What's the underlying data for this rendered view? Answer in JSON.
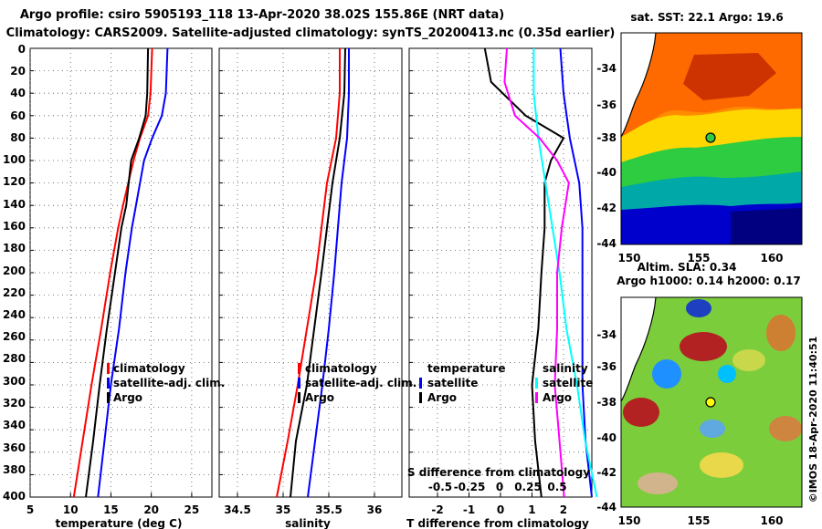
{
  "header": {
    "line1": "Argo profile: csiro 5905193_118 13-Apr-2020 38.02S 155.86E (NRT data)",
    "line2": "Climatology: CARS2009. Satellite-adjusted climatology: synTS_20200413.nc (0.35d earlier)"
  },
  "side_note": "©IMOS 18-Apr-2020 11:40:51",
  "colors": {
    "climatology": "#ff0000",
    "satellite": "#0000ff",
    "argo": "#000000",
    "t_diff": "#ff00ff",
    "s_diff": "#00ffff"
  },
  "depth_axis": {
    "label_ticks": [
      "0",
      "20",
      "40",
      "60",
      "80",
      "100",
      "120",
      "140",
      "160",
      "180",
      "200",
      "220",
      "240",
      "260",
      "280",
      "300",
      "320",
      "340",
      "360",
      "380",
      "400"
    ],
    "ylim": [
      0,
      400
    ]
  },
  "maps": [
    {
      "title": "sat. SST: 22.1 Argo: 19.6",
      "lat_ticks": [
        "-34",
        "-36",
        "-38",
        "-40",
        "-42",
        "-44"
      ],
      "lon_ticks": [
        "150",
        "155",
        "160"
      ]
    },
    {
      "title1": "Altim. SLA: 0.34",
      "title2": "Argo h1000: 0.14 h2000: 0.17",
      "lat_ticks": [
        "-34",
        "-36",
        "-38",
        "-40",
        "-42",
        "-44"
      ],
      "lon_ticks": [
        "150",
        "155",
        "160"
      ]
    }
  ],
  "chart_data": [
    {
      "type": "line",
      "id": "temperature",
      "xlabel": "temperature (deg C)",
      "ylabel": "depth",
      "xlim": [
        5,
        27.5
      ],
      "ylim": [
        400,
        0
      ],
      "x_ticks": [
        "5",
        "10",
        "15",
        "20",
        "25"
      ],
      "legend": [
        "climatology",
        "satellite-adj. clim.",
        "Argo"
      ],
      "series": [
        {
          "name": "climatology",
          "color": "#ff0000",
          "depth": [
            0,
            40,
            60,
            80,
            100,
            140,
            160,
            200,
            250,
            300,
            350,
            400
          ],
          "values": [
            20.1,
            19.9,
            19.6,
            18.6,
            17.8,
            16.5,
            15.9,
            14.9,
            13.8,
            12.6,
            11.5,
            10.4
          ]
        },
        {
          "name": "satellite-adj. clim.",
          "color": "#0000ff",
          "depth": [
            0,
            40,
            60,
            80,
            100,
            140,
            160,
            200,
            250,
            300,
            350,
            400
          ],
          "values": [
            22.0,
            21.8,
            21.3,
            20.1,
            19.1,
            18.1,
            17.6,
            16.8,
            16.0,
            15.0,
            14.2,
            13.4
          ]
        },
        {
          "name": "Argo",
          "color": "#000000",
          "depth": [
            0,
            40,
            60,
            80,
            100,
            140,
            160,
            200,
            250,
            300,
            350,
            400
          ],
          "values": [
            19.6,
            19.5,
            19.3,
            18.5,
            17.5,
            16.9,
            16.3,
            15.5,
            14.5,
            13.6,
            12.8,
            11.9
          ]
        }
      ]
    },
    {
      "type": "line",
      "id": "salinity",
      "xlabel": "salinity",
      "ylabel": "depth",
      "xlim": [
        34.3,
        36.3
      ],
      "ylim": [
        400,
        0
      ],
      "x_ticks": [
        "34.5",
        "35",
        "35.5",
        "36"
      ],
      "legend": [
        "climatology",
        "satellite-adj. clim.",
        "Argo"
      ],
      "series": [
        {
          "name": "climatology",
          "color": "#ff0000",
          "depth": [
            0,
            40,
            80,
            120,
            160,
            200,
            250,
            300,
            350,
            400
          ],
          "values": [
            35.62,
            35.62,
            35.58,
            35.48,
            35.42,
            35.36,
            35.26,
            35.16,
            35.05,
            34.93
          ]
        },
        {
          "name": "satellite-adj. clim.",
          "color": "#0000ff",
          "depth": [
            0,
            40,
            80,
            120,
            160,
            200,
            250,
            300,
            350,
            400
          ],
          "values": [
            35.72,
            35.72,
            35.7,
            35.64,
            35.6,
            35.56,
            35.5,
            35.43,
            35.35,
            35.27
          ]
        },
        {
          "name": "Argo",
          "color": "#000000",
          "depth": [
            0,
            40,
            80,
            120,
            160,
            200,
            250,
            300,
            350,
            400
          ],
          "values": [
            35.68,
            35.67,
            35.62,
            35.54,
            35.48,
            35.42,
            35.34,
            35.26,
            35.14,
            35.08
          ]
        }
      ]
    },
    {
      "type": "line",
      "id": "difference",
      "xlabel": "T difference from climatology",
      "xlabel_top": "S difference from climatology",
      "ylabel": "depth",
      "xlim": [
        -2.9,
        2.9
      ],
      "ylim": [
        400,
        0
      ],
      "x_ticks": [
        "-2",
        "-1",
        "0",
        "1",
        "2"
      ],
      "x_ticks_top": [
        "-0.5",
        "-0.25",
        "0",
        "0.25",
        "0.5"
      ],
      "legend_left": [
        "temperature",
        "satellite",
        "Argo"
      ],
      "legend_right": [
        "salinity",
        "satellite",
        "Argo"
      ],
      "series": [
        {
          "name": "T satellite - clim",
          "color": "#0000ff",
          "depth": [
            0,
            40,
            80,
            120,
            160,
            200,
            250,
            300,
            350,
            400
          ],
          "values": [
            1.9,
            2.0,
            2.2,
            2.5,
            2.6,
            2.6,
            2.6,
            2.6,
            2.7,
            2.9
          ]
        },
        {
          "name": "T Argo - clim",
          "color": "#000000",
          "depth": [
            0,
            30,
            60,
            80,
            100,
            120,
            160,
            200,
            250,
            300,
            350,
            400
          ],
          "values": [
            -0.5,
            -0.3,
            0.8,
            2.0,
            1.6,
            1.4,
            1.4,
            1.3,
            1.2,
            1.0,
            1.1,
            1.3
          ]
        },
        {
          "name": "S satellite - clim",
          "color": "#00ffff",
          "depth": [
            0,
            40,
            80,
            120,
            160,
            200,
            250,
            300,
            350,
            400
          ],
          "values": [
            0.3,
            0.3,
            0.34,
            0.4,
            0.46,
            0.52,
            0.58,
            0.67,
            0.74,
            0.84
          ]
        },
        {
          "name": "S Argo - clim",
          "color": "#ff00ff",
          "depth": [
            0,
            30,
            60,
            80,
            100,
            120,
            160,
            200,
            250,
            300,
            350,
            400
          ],
          "values": [
            0.07,
            0.05,
            0.14,
            0.35,
            0.5,
            0.6,
            0.54,
            0.5,
            0.5,
            0.48,
            0.52,
            0.56
          ]
        }
      ]
    }
  ]
}
